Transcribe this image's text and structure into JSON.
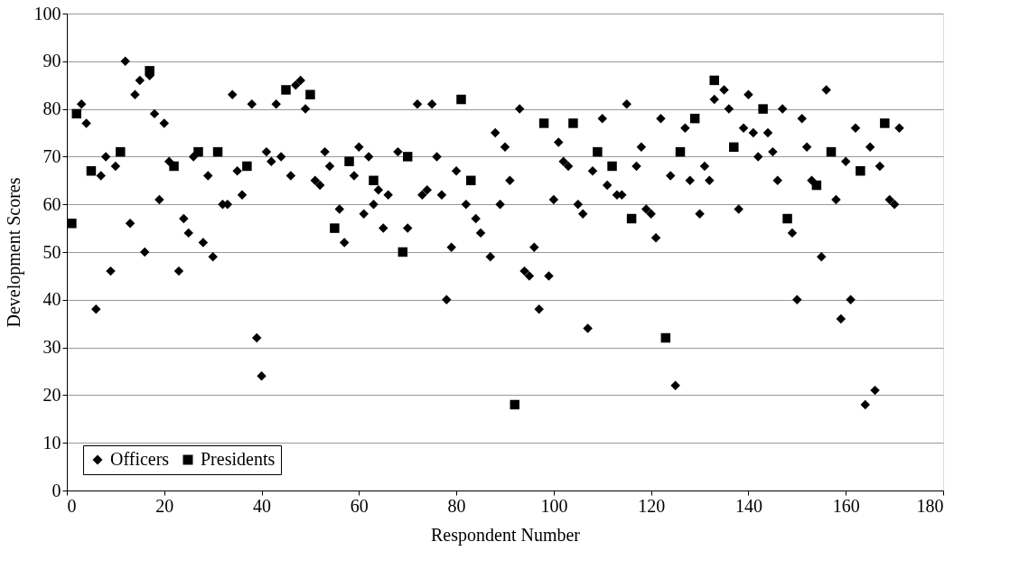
{
  "chart_data": {
    "type": "scatter",
    "xlabel": "Respondent Number",
    "ylabel": "Development Scores",
    "xlim": [
      0,
      180
    ],
    "xticks": [
      0,
      20,
      40,
      60,
      80,
      100,
      120,
      140,
      160,
      180
    ],
    "ylim": [
      0,
      100
    ],
    "yticks": [
      0,
      10,
      20,
      30,
      40,
      50,
      60,
      70,
      80,
      90,
      100
    ],
    "grid": "y",
    "legend": "bottom left",
    "series": [
      {
        "name": "Officers",
        "color": "#000000",
        "marker": "diamond",
        "x": [
          3,
          4,
          6,
          7,
          8,
          9,
          10,
          12,
          13,
          14,
          15,
          16,
          17,
          18,
          19,
          20,
          21,
          23,
          24,
          25,
          26,
          28,
          29,
          30,
          32,
          33,
          34,
          35,
          36,
          38,
          39,
          40,
          41,
          42,
          43,
          44,
          46,
          47,
          48,
          49,
          51,
          52,
          53,
          54,
          56,
          57,
          59,
          60,
          61,
          62,
          63,
          64,
          65,
          66,
          68,
          70,
          72,
          73,
          74,
          75,
          76,
          77,
          78,
          79,
          80,
          82,
          84,
          85,
          87,
          88,
          89,
          90,
          91,
          93,
          94,
          95,
          96,
          97,
          99,
          100,
          101,
          102,
          103,
          105,
          106,
          107,
          108,
          110,
          111,
          113,
          114,
          115,
          117,
          118,
          119,
          120,
          121,
          122,
          124,
          125,
          127,
          128,
          130,
          131,
          132,
          133,
          135,
          136,
          138,
          139,
          140,
          141,
          142,
          144,
          145,
          146,
          147,
          149,
          150,
          151,
          152,
          153,
          155,
          156,
          158,
          159,
          160,
          161,
          162,
          164,
          165,
          166,
          167,
          169,
          170,
          171
        ],
        "values": [
          81,
          77,
          38,
          66,
          70,
          46,
          68,
          90,
          56,
          83,
          86,
          50,
          87,
          79,
          61,
          77,
          69,
          46,
          57,
          54,
          70,
          52,
          66,
          49,
          60,
          60,
          83,
          67,
          62,
          81,
          32,
          24,
          71,
          69,
          81,
          70,
          66,
          85,
          86,
          80,
          65,
          64,
          71,
          68,
          59,
          52,
          66,
          72,
          58,
          70,
          60,
          63,
          55,
          62,
          71,
          55,
          81,
          62,
          63,
          81,
          70,
          62,
          40,
          51,
          67,
          60,
          57,
          54,
          49,
          75,
          60,
          72,
          65,
          80,
          46,
          45,
          51,
          38,
          45,
          61,
          73,
          69,
          68,
          60,
          58,
          34,
          67,
          78,
          64,
          62,
          62,
          81,
          68,
          72,
          59,
          58,
          53,
          78,
          66,
          22,
          76,
          65,
          58,
          68,
          65,
          82,
          84,
          80,
          59,
          76,
          83,
          75,
          70,
          75,
          71,
          65,
          80,
          54,
          40,
          78,
          72,
          65,
          49,
          84,
          61,
          36,
          69,
          40,
          76,
          18,
          72,
          21,
          68,
          61,
          60,
          76
        ]
      },
      {
        "name": "Presidents",
        "color": "#000000",
        "marker": "square",
        "x": [
          1,
          2,
          5,
          11,
          17,
          22,
          27,
          31,
          37,
          45,
          50,
          55,
          58,
          63,
          69,
          70,
          81,
          83,
          92,
          98,
          104,
          109,
          112,
          116,
          123,
          126,
          129,
          133,
          137,
          143,
          148,
          154,
          157,
          163,
          168
        ],
        "values": [
          56,
          79,
          67,
          71,
          88,
          68,
          71,
          71,
          68,
          84,
          83,
          55,
          69,
          65,
          50,
          70,
          82,
          65,
          18,
          77,
          77,
          71,
          68,
          57,
          32,
          71,
          78,
          86,
          72,
          80,
          57,
          64,
          71,
          67,
          77
        ]
      }
    ]
  }
}
